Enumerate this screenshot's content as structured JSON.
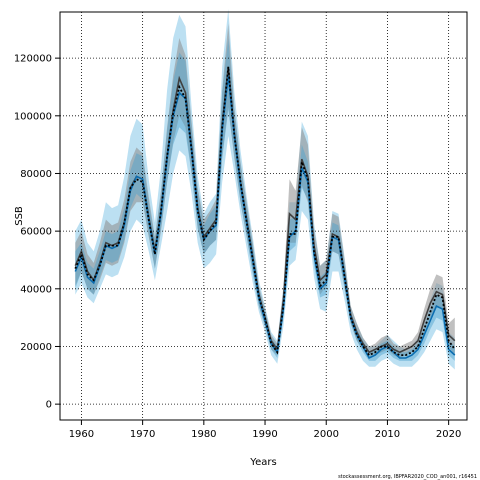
{
  "chart_data": {
    "type": "area",
    "xlabel": "Years",
    "ylabel": "SSB",
    "footer": "stockassessment.org, IBPFAR2020_COD_an001, r16451",
    "xlim": [
      1956.5,
      2023
    ],
    "ylim": [
      -5500,
      136000
    ],
    "x_ticks": [
      1960,
      1970,
      1980,
      1990,
      2000,
      2010,
      2020
    ],
    "x_tick_labels": [
      "1960",
      "1970",
      "1980",
      "1990",
      "2000",
      "2010",
      "2020"
    ],
    "y_ticks": [
      0,
      20000,
      40000,
      60000,
      80000,
      100000,
      120000
    ],
    "y_tick_labels": [
      "0",
      "20000",
      "40000",
      "60000",
      "80000",
      "100000",
      "120000"
    ],
    "grid": true,
    "colors": {
      "outer_band": "#a6d6ee",
      "inner_band": "#4aa0cc",
      "gray_band": "#8c8c8c",
      "gray_line": "#404040",
      "blue_line": "#0b6db0",
      "point_line": "#000000",
      "grid": "#000000"
    },
    "series": [
      {
        "years": [
          1959,
          1960,
          1961,
          1962,
          1963,
          1964,
          1965,
          1966,
          1967,
          1968,
          1969,
          1970,
          1971,
          1972,
          1973,
          1974,
          1975,
          1976,
          1977,
          1978,
          1979,
          1980,
          1981,
          1982,
          1983,
          1984,
          1985,
          1986,
          1987,
          1988,
          1989,
          1990,
          1991,
          1992,
          1993,
          1994,
          1995,
          1996,
          1997,
          1998,
          1999,
          2000,
          2001,
          2002,
          2003,
          2004,
          2005,
          2006,
          2007,
          2008,
          2009,
          2010,
          2011,
          2012,
          2013,
          2014,
          2015,
          2016,
          2017,
          2018,
          2019,
          2020,
          2021
        ],
        "estimate": [
          46000,
          51000,
          44000,
          42000,
          48000,
          55000,
          54000,
          55000,
          62000,
          74000,
          79000,
          78000,
          64000,
          52000,
          66000,
          85000,
          100000,
          108000,
          106000,
          88000,
          67000,
          57000,
          60000,
          62000,
          95000,
          114000,
          93000,
          76000,
          63000,
          50000,
          37000,
          29000,
          21000,
          18000,
          33000,
          58000,
          60000,
          82000,
          77000,
          52000,
          40000,
          42000,
          58000,
          57000,
          44000,
          30000,
          24000,
          20000,
          16000,
          17000,
          19000,
          20000,
          18000,
          16000,
          16000,
          17000,
          19000,
          24000,
          29000,
          34000,
          33000,
          19000,
          17000
        ],
        "inner_upper": [
          53000,
          56000,
          49000,
          47000,
          53000,
          60000,
          59000,
          60000,
          68000,
          81000,
          87000,
          86000,
          70000,
          57000,
          73000,
          95000,
          112000,
          122000,
          119000,
          96000,
          74000,
          62000,
          66000,
          69000,
          108000,
          127000,
          101000,
          83000,
          68000,
          55000,
          40000,
          32000,
          23000,
          20000,
          37000,
          64000,
          65000,
          90000,
          84000,
          57000,
          44000,
          46000,
          63000,
          62000,
          48000,
          32000,
          26000,
          22000,
          18000,
          19000,
          21000,
          22000,
          20000,
          18000,
          18000,
          19000,
          21000,
          27000,
          33000,
          38000,
          37000,
          22000,
          20000
        ],
        "inner_lower": [
          40000,
          46000,
          40000,
          38000,
          44000,
          50000,
          49000,
          50000,
          57000,
          68000,
          73000,
          71000,
          59000,
          47000,
          61000,
          77000,
          90000,
          96000,
          94000,
          80000,
          61000,
          52000,
          55000,
          57000,
          85000,
          102000,
          86000,
          70000,
          58000,
          45000,
          34000,
          27000,
          19000,
          16000,
          30000,
          53000,
          55000,
          75000,
          71000,
          48000,
          37000,
          38000,
          53000,
          52000,
          40000,
          28000,
          22000,
          18000,
          15000,
          15000,
          17000,
          18000,
          16000,
          15000,
          15000,
          15000,
          17000,
          21000,
          26000,
          30000,
          29000,
          17000,
          15000
        ],
        "outer_upper": [
          60000,
          64000,
          56000,
          53000,
          60000,
          70000,
          68000,
          69000,
          79000,
          93000,
          99000,
          97000,
          78000,
          63000,
          82000,
          109000,
          127000,
          135000,
          131000,
          103000,
          79000,
          66000,
          70000,
          73000,
          117000,
          137000,
          108000,
          88000,
          72000,
          58000,
          43000,
          34000,
          25000,
          22000,
          41000,
          70000,
          70000,
          98000,
          93000,
          63000,
          48000,
          50000,
          67000,
          66000,
          51000,
          34000,
          28000,
          23000,
          20000,
          20000,
          22000,
          24000,
          22000,
          20000,
          19000,
          20000,
          23000,
          29000,
          36000,
          42000,
          41000,
          25000,
          23000
        ],
        "outer_lower": [
          38000,
          42000,
          37000,
          35000,
          40000,
          45000,
          44000,
          45000,
          51000,
          60000,
          64000,
          62000,
          53000,
          43000,
          55000,
          67000,
          80000,
          88000,
          86000,
          73000,
          56000,
          47000,
          49000,
          52000,
          77000,
          93000,
          80000,
          66000,
          54000,
          42000,
          32000,
          25000,
          17000,
          14000,
          27000,
          48000,
          50000,
          67000,
          64000,
          44000,
          33000,
          32000,
          46000,
          46000,
          36000,
          25000,
          19000,
          15000,
          13000,
          13000,
          15000,
          16000,
          14000,
          13000,
          13000,
          13000,
          15000,
          18000,
          22000,
          26000,
          25000,
          14000,
          12000
        ]
      },
      {
        "years": [
          1959,
          1960,
          1961,
          1962,
          1963,
          1964,
          1965,
          1966,
          1967,
          1968,
          1969,
          1970,
          1971,
          1972,
          1973,
          1974,
          1975,
          1976,
          1977,
          1978,
          1979,
          1980,
          1981,
          1982,
          1983,
          1984,
          1985,
          1986,
          1987,
          1988,
          1989,
          1990,
          1991,
          1992,
          1993,
          1994,
          1995,
          1996,
          1997,
          1998,
          1999,
          2000,
          2001,
          2002,
          2003,
          2004,
          2005,
          2006,
          2007,
          2008,
          2009,
          2010,
          2011,
          2012,
          2013,
          2014,
          2015,
          2016,
          2017,
          2018,
          2019,
          2020,
          2021
        ],
        "estimate": [
          48000,
          53000,
          46000,
          43000,
          49000,
          56000,
          55000,
          56000,
          63000,
          75000,
          79000,
          78000,
          65000,
          53000,
          67000,
          86000,
          102000,
          113000,
          108000,
          89000,
          68000,
          58000,
          61000,
          64000,
          97000,
          117000,
          94000,
          77000,
          64000,
          51000,
          38000,
          30000,
          22000,
          19000,
          36000,
          66000,
          64000,
          85000,
          79000,
          55000,
          43000,
          45000,
          59000,
          58000,
          45000,
          31000,
          25000,
          21000,
          18000,
          19000,
          20000,
          21000,
          19000,
          18000,
          19000,
          20000,
          22000,
          29000,
          35000,
          39000,
          38000,
          24000,
          22000
        ],
        "upper": [
          56000,
          60000,
          52000,
          49000,
          56000,
          64000,
          62000,
          63000,
          71000,
          84000,
          89000,
          87000,
          72000,
          58000,
          74000,
          96000,
          114000,
          127000,
          121000,
          98000,
          75000,
          64000,
          67000,
          71000,
          109000,
          132000,
          103000,
          84000,
          70000,
          56000,
          41000,
          33000,
          24000,
          21000,
          40000,
          78000,
          74000,
          96000,
          90000,
          61000,
          48000,
          50000,
          66000,
          65000,
          50000,
          34000,
          28000,
          23000,
          20000,
          21000,
          23000,
          24000,
          21000,
          20000,
          21000,
          22000,
          25000,
          33000,
          40000,
          45000,
          44000,
          28000,
          30000
        ],
        "lower": [
          41000,
          46000,
          40000,
          38000,
          43000,
          49000,
          48000,
          49000,
          56000,
          67000,
          70000,
          70000,
          58000,
          47000,
          60000,
          77000,
          91000,
          100000,
          96000,
          80000,
          61000,
          52000,
          55000,
          57000,
          86000,
          103000,
          85000,
          70000,
          58000,
          46000,
          34000,
          27000,
          19000,
          17000,
          32000,
          56000,
          56000,
          76000,
          70000,
          50000,
          38000,
          41000,
          53000,
          52000,
          40000,
          28000,
          22000,
          19000,
          16000,
          17000,
          18000,
          19000,
          17000,
          16000,
          17000,
          18000,
          19000,
          25000,
          30000,
          34000,
          33000,
          20000,
          17000
        ]
      },
      {
        "years": [
          1959,
          1960,
          1961,
          1962,
          1963,
          1964,
          1965,
          1966,
          1967,
          1968,
          1969,
          1970,
          1971,
          1972,
          1973,
          1974,
          1975,
          1976,
          1977,
          1978,
          1979,
          1980,
          1981,
          1982,
          1983,
          1984,
          1985,
          1986,
          1987,
          1988,
          1989,
          1990,
          1991,
          1992,
          1993,
          1994,
          1995,
          1996,
          1997,
          1998,
          1999,
          2000,
          2001,
          2002,
          2003,
          2004,
          2005,
          2006,
          2007,
          2008,
          2009,
          2010,
          2011,
          2012,
          2013,
          2014,
          2015,
          2016,
          2017,
          2018,
          2019,
          2020,
          2021
        ],
        "values": [
          47000,
          52000,
          45000,
          43000,
          48000,
          55000,
          55000,
          55000,
          63000,
          75000,
          78000,
          77000,
          64000,
          52000,
          67000,
          86000,
          101000,
          110000,
          106000,
          88000,
          67000,
          57000,
          60000,
          63000,
          96000,
          117000,
          93000,
          77000,
          63000,
          50000,
          37000,
          30000,
          21000,
          18000,
          34000,
          59000,
          59000,
          84000,
          78000,
          53000,
          41000,
          43000,
          58000,
          58000,
          44000,
          30000,
          24000,
          20000,
          17000,
          18000,
          20000,
          20000,
          18000,
          17000,
          17000,
          18000,
          20000,
          26000,
          32000,
          38000,
          37000,
          22000,
          19000
        ]
      }
    ]
  }
}
